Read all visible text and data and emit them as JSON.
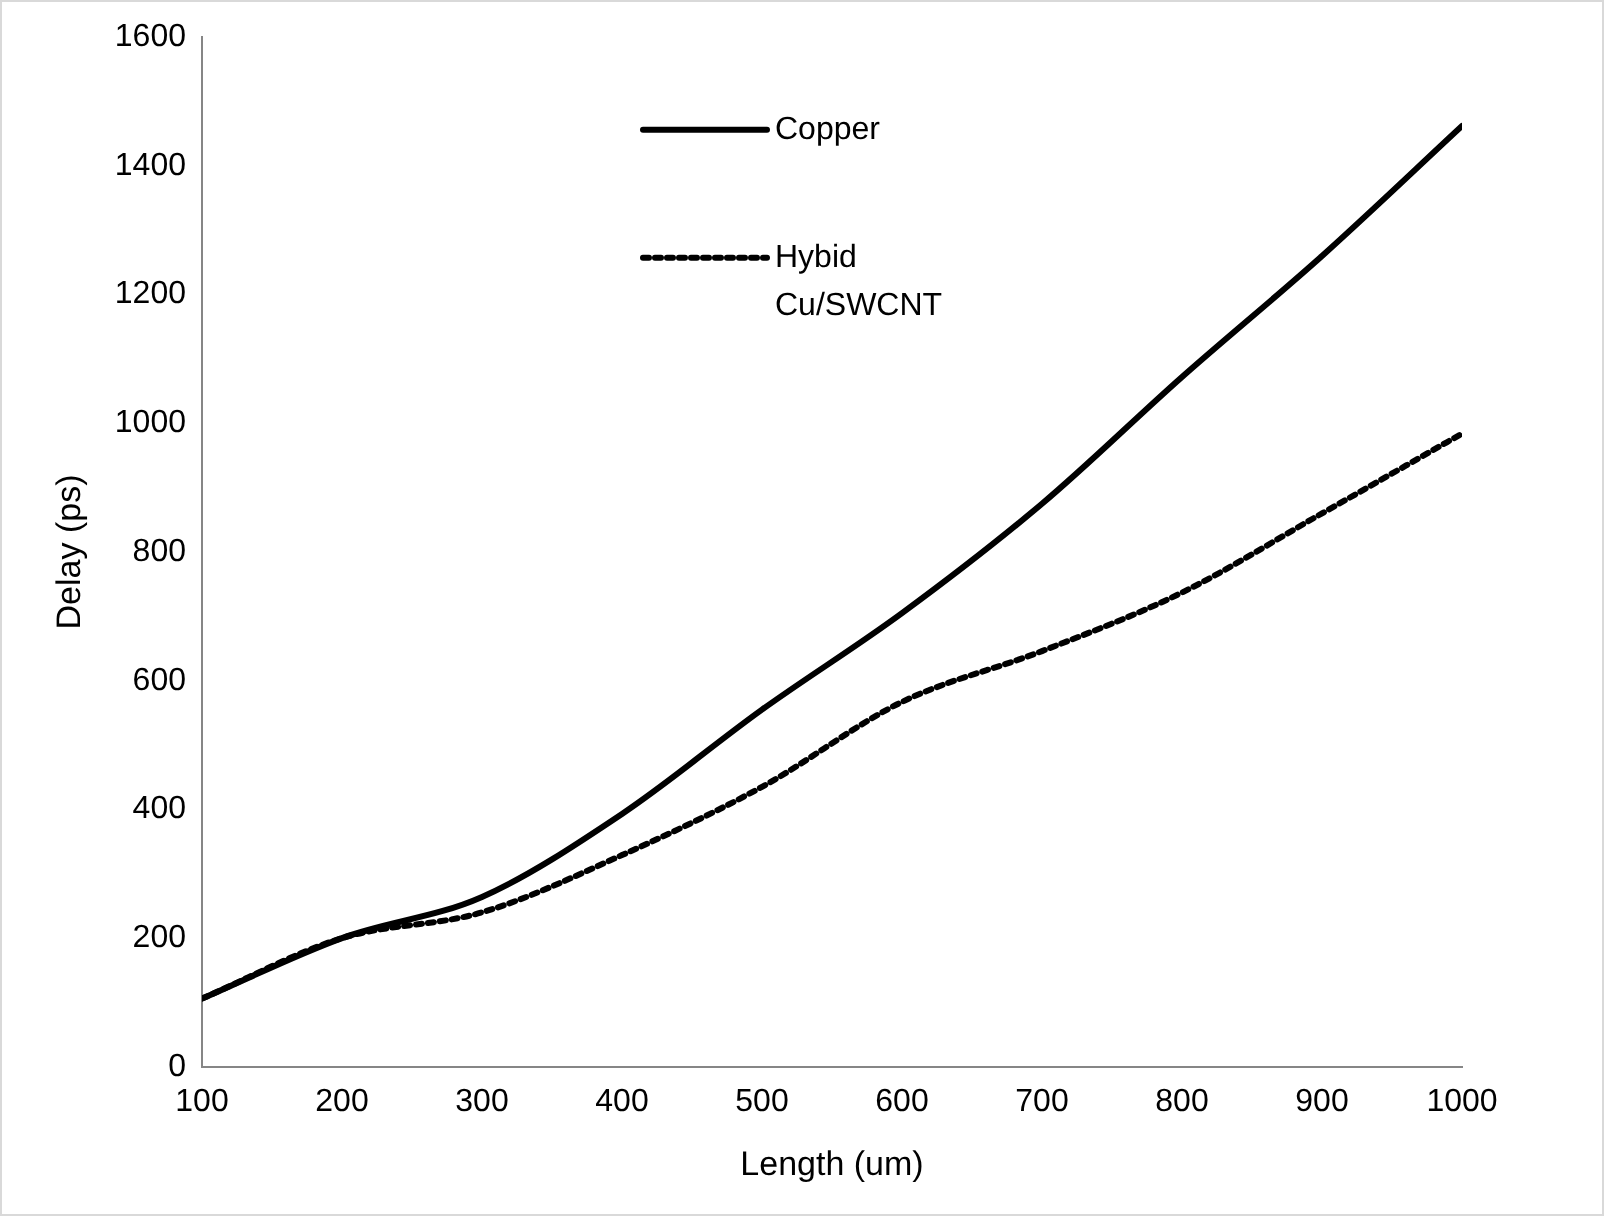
{
  "chart_data": {
    "type": "line",
    "xlabel": "Length (um)",
    "ylabel": "Delay (ps)",
    "x": [
      100,
      200,
      300,
      400,
      500,
      600,
      700,
      800,
      900,
      1000
    ],
    "series": [
      {
        "name": "Copper",
        "color": "#000000",
        "line_style": "solid",
        "values": [
          106,
          200,
          264,
          393,
          555,
          705,
          875,
          1072,
          1260,
          1462
        ]
      },
      {
        "name": "Hybid Cu/SWCNT",
        "color": "#000000",
        "line_style": "dotted",
        "values": [
          106,
          200,
          240,
          329,
          435,
          567,
          646,
          737,
          860,
          984
        ]
      }
    ],
    "xlim": [
      100,
      1000
    ],
    "xticks": [
      100,
      200,
      300,
      400,
      500,
      600,
      700,
      800,
      900,
      1000
    ],
    "ylim": [
      0,
      1600
    ],
    "yticks": [
      0,
      200,
      400,
      600,
      800,
      1000,
      1200,
      1400,
      1600
    ],
    "grid": false,
    "legend": "top",
    "marker": "none"
  }
}
